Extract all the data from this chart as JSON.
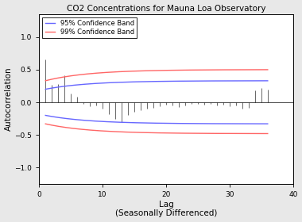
{
  "title": "CO2 Concentrations for Mauna Loa Observatory",
  "xlabel": "Lag\n(Seasonally Differenced)",
  "ylabel": "Autocorrelation",
  "xlim": [
    0,
    40
  ],
  "ylim": [
    -1.25,
    1.35
  ],
  "yticks": [
    -1,
    -0.5,
    0,
    0.5,
    1
  ],
  "xticks": [
    0,
    10,
    20,
    30,
    40
  ],
  "color_95": "#6666FF",
  "color_99": "#FF6666",
  "color_bars": "#555555",
  "background": "#e8e8e8",
  "plot_bg": "#ffffff",
  "legend_95": "95% Confidence Band",
  "legend_99": "99% Confidence Band",
  "n_lags": 36,
  "acf_values": [
    0.65,
    0.27,
    0.28,
    0.41,
    0.13,
    0.08,
    -0.02,
    -0.06,
    -0.05,
    -0.1,
    -0.18,
    -0.25,
    -0.3,
    -0.2,
    -0.15,
    -0.12,
    -0.1,
    -0.08,
    -0.06,
    -0.04,
    -0.05,
    -0.07,
    -0.05,
    -0.03,
    -0.02,
    -0.04,
    -0.03,
    -0.05,
    -0.04,
    -0.06,
    -0.05,
    -0.1,
    -0.08,
    0.18,
    0.22,
    0.2
  ],
  "conf95_upper_start": 0.2,
  "conf95_upper_end": 0.33,
  "conf99_upper_start": 0.33,
  "conf99_upper_end": 0.5,
  "conf95_lower_start": -0.2,
  "conf95_lower_end": -0.33,
  "conf99_lower_start": -0.33,
  "conf99_lower_end": -0.48,
  "title_fontsize": 7.5,
  "axis_fontsize": 7.5,
  "tick_fontsize": 6.5,
  "legend_fontsize": 6.0
}
